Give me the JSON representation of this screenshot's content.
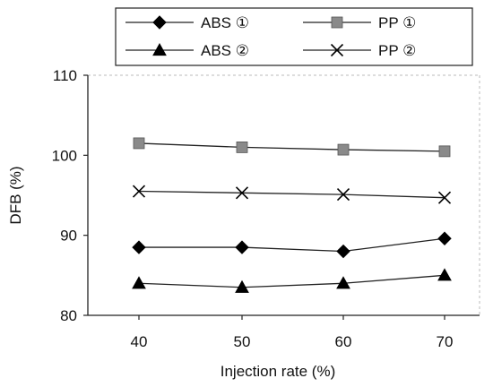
{
  "chart_data": {
    "type": "line",
    "title": "",
    "xlabel": "Injection rate (%)",
    "ylabel": "DFB (%)",
    "categories": [
      "40",
      "50",
      "60",
      "70"
    ],
    "x": [
      40,
      50,
      60,
      70
    ],
    "ylim": [
      80,
      110
    ],
    "yticks": [
      80,
      90,
      100,
      110
    ],
    "grid": false,
    "legend_position": "top",
    "series": [
      {
        "name": "ABS ①",
        "marker": "diamond",
        "values": [
          88.5,
          88.5,
          88.0,
          89.6
        ]
      },
      {
        "name": "PP ①",
        "marker": "square",
        "values": [
          101.5,
          101.0,
          100.7,
          100.5
        ]
      },
      {
        "name": "ABS ②",
        "marker": "triangle",
        "values": [
          84.0,
          83.5,
          84.0,
          85.0
        ]
      },
      {
        "name": "PP ②",
        "marker": "x",
        "values": [
          95.5,
          95.3,
          95.1,
          94.7
        ]
      }
    ]
  }
}
